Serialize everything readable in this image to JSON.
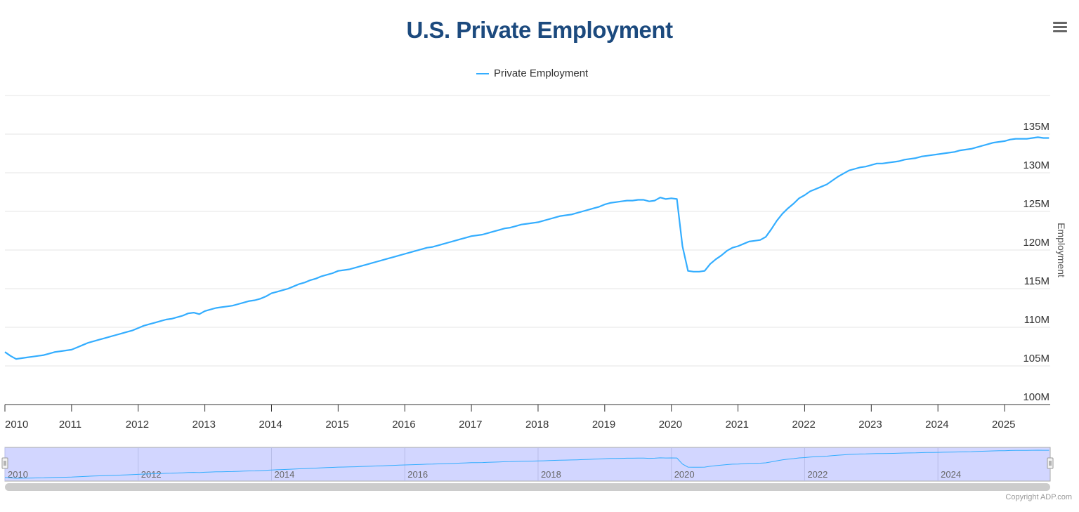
{
  "title": "U.S. Private Employment",
  "menu_icon": "hamburger-icon",
  "legend_label": "Private Employment",
  "copyright": "Copyright ADP.com",
  "colors": {
    "line": "#33adff",
    "title": "#1c4a7e",
    "navigator_fill": "#d2d6ff"
  },
  "chart_data": {
    "type": "line",
    "title": "U.S. Private Employment",
    "ylabel": "Employment",
    "xlabel": "",
    "ylim": [
      100,
      140
    ],
    "yticks": [
      "100M",
      "105M",
      "110M",
      "115M",
      "120M",
      "125M",
      "130M",
      "135M"
    ],
    "ytick_values": [
      100,
      105,
      110,
      115,
      120,
      125,
      130,
      135
    ],
    "xticks": [
      "2010",
      "2011",
      "2012",
      "2013",
      "2014",
      "2015",
      "2016",
      "2017",
      "2018",
      "2019",
      "2020",
      "2021",
      "2022",
      "2023",
      "2024",
      "2025"
    ],
    "navigator_ticks": [
      "2010",
      "2012",
      "2014",
      "2016",
      "2018",
      "2020",
      "2022",
      "2024"
    ],
    "grid": true,
    "legend": "top-center",
    "unit": "millions",
    "start": "2010-01",
    "frequency": "monthly",
    "series": [
      {
        "name": "Private Employment",
        "values": [
          106.8,
          106.3,
          105.9,
          106.0,
          106.1,
          106.2,
          106.3,
          106.4,
          106.6,
          106.8,
          106.9,
          107.0,
          107.1,
          107.4,
          107.7,
          108.0,
          108.2,
          108.4,
          108.6,
          108.8,
          109.0,
          109.2,
          109.4,
          109.6,
          109.9,
          110.2,
          110.4,
          110.6,
          110.8,
          111.0,
          111.1,
          111.3,
          111.5,
          111.8,
          111.9,
          111.7,
          112.1,
          112.3,
          112.5,
          112.6,
          112.7,
          112.8,
          113.0,
          113.2,
          113.4,
          113.5,
          113.7,
          114.0,
          114.4,
          114.6,
          114.8,
          115.0,
          115.3,
          115.6,
          115.8,
          116.1,
          116.3,
          116.6,
          116.8,
          117.0,
          117.3,
          117.4,
          117.5,
          117.7,
          117.9,
          118.1,
          118.3,
          118.5,
          118.7,
          118.9,
          119.1,
          119.3,
          119.5,
          119.7,
          119.9,
          120.1,
          120.3,
          120.4,
          120.6,
          120.8,
          121.0,
          121.2,
          121.4,
          121.6,
          121.8,
          121.9,
          122.0,
          122.2,
          122.4,
          122.6,
          122.8,
          122.9,
          123.1,
          123.3,
          123.4,
          123.5,
          123.6,
          123.8,
          124.0,
          124.2,
          124.4,
          124.5,
          124.6,
          124.8,
          125.0,
          125.2,
          125.4,
          125.6,
          125.9,
          126.1,
          126.2,
          126.3,
          126.4,
          126.4,
          126.5,
          126.5,
          126.3,
          126.4,
          126.8,
          126.6,
          126.7,
          126.6,
          120.5,
          117.3,
          117.2,
          117.2,
          117.3,
          118.2,
          118.8,
          119.3,
          119.9,
          120.3,
          120.5,
          120.8,
          121.1,
          121.2,
          121.3,
          121.7,
          122.7,
          123.8,
          124.7,
          125.4,
          126.0,
          126.7,
          127.1,
          127.6,
          127.9,
          128.2,
          128.5,
          129.0,
          129.5,
          129.9,
          130.3,
          130.5,
          130.7,
          130.8,
          131.0,
          131.2,
          131.2,
          131.3,
          131.4,
          131.5,
          131.7,
          131.8,
          131.9,
          132.1,
          132.2,
          132.3,
          132.4,
          132.5,
          132.6,
          132.7,
          132.9,
          133.0,
          133.1,
          133.3,
          133.5,
          133.7,
          133.9,
          134.0,
          134.1,
          134.3,
          134.4,
          134.4,
          134.4,
          134.5,
          134.6,
          134.5,
          134.5
        ]
      }
    ]
  }
}
